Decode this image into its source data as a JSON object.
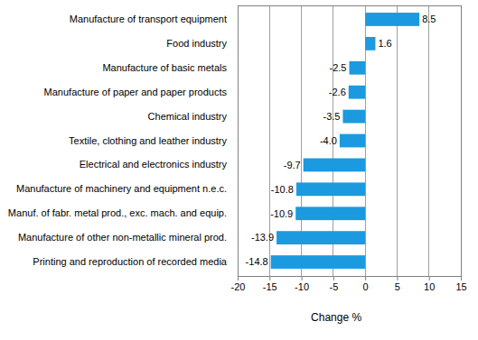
{
  "chart_data": {
    "type": "bar",
    "orientation": "horizontal",
    "x_label": "Change %",
    "categories": [
      "Manufacture of transport equipment",
      "Food industry",
      "Manufacture of basic metals",
      "Manufacture of paper and paper products",
      "Chemical industry",
      "Textile, clothing and leather industry",
      "Electrical and electronics industry",
      "Manufacture of machinery and equipment n.e.c.",
      "Manuf. of fabr. metal prod., exc. mach. and equip.",
      "Manufacture of other non-metallic mineral prod.",
      "Printing and reproduction of recorded media"
    ],
    "values": [
      8.5,
      1.6,
      -2.5,
      -2.6,
      -3.5,
      -4.0,
      -9.7,
      -10.8,
      -10.9,
      -13.9,
      -14.8
    ],
    "value_labels": [
      "8.5",
      "1.6",
      "-2.5",
      "-2.6",
      "-3.5",
      "-4.0",
      "-9.7",
      "-10.8",
      "-10.9",
      "-13.9",
      "-14.8"
    ],
    "color": "#1b9ae0",
    "xlim": [
      -20,
      15
    ],
    "xticks": [
      -20,
      -15,
      -10,
      -5,
      0,
      5,
      10,
      15
    ],
    "grid": true,
    "data_labels": true
  }
}
